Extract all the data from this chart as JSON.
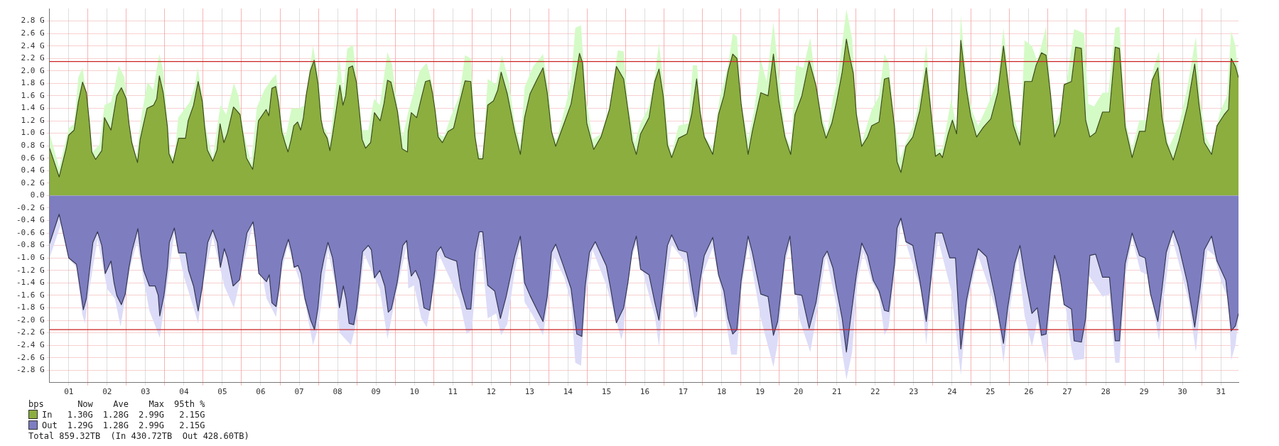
{
  "chart_data": {
    "type": "area",
    "xlim": [
      0,
      30.96
    ],
    "ylim": [
      -3,
      3
    ],
    "xticks": [
      {
        "value": 0.5,
        "label": "01"
      },
      {
        "value": 1,
        "label": null
      },
      {
        "value": 1.5,
        "label": "02"
      },
      {
        "value": 2,
        "label": null
      },
      {
        "value": 2.5,
        "label": "03"
      },
      {
        "value": 3,
        "label": null
      },
      {
        "value": 3.5,
        "label": "04"
      },
      {
        "value": 4,
        "label": null
      },
      {
        "value": 4.5,
        "label": "05"
      },
      {
        "value": 5,
        "label": null
      },
      {
        "value": 5.5,
        "label": "06"
      },
      {
        "value": 6,
        "label": null
      },
      {
        "value": 6.5,
        "label": "07"
      },
      {
        "value": 7,
        "label": null
      },
      {
        "value": 7.5,
        "label": "08"
      },
      {
        "value": 8,
        "label": null
      },
      {
        "value": 8.5,
        "label": "09"
      },
      {
        "value": 9,
        "label": null
      },
      {
        "value": 9.5,
        "label": "10"
      },
      {
        "value": 10,
        "label": null
      },
      {
        "value": 10.5,
        "label": "11"
      },
      {
        "value": 11,
        "label": null
      },
      {
        "value": 11.5,
        "label": "12"
      },
      {
        "value": 12,
        "label": null
      },
      {
        "value": 12.5,
        "label": "13"
      },
      {
        "value": 13,
        "label": null
      },
      {
        "value": 13.5,
        "label": "14"
      },
      {
        "value": 14,
        "label": null
      },
      {
        "value": 14.5,
        "label": "15"
      },
      {
        "value": 15,
        "label": null
      },
      {
        "value": 15.5,
        "label": "16"
      },
      {
        "value": 16,
        "label": null
      },
      {
        "value": 16.5,
        "label": "17"
      },
      {
        "value": 17,
        "label": null
      },
      {
        "value": 17.5,
        "label": "18"
      },
      {
        "value": 18,
        "label": null
      },
      {
        "value": 18.5,
        "label": "19"
      },
      {
        "value": 19,
        "label": null
      },
      {
        "value": 19.5,
        "label": "20"
      },
      {
        "value": 20,
        "label": null
      },
      {
        "value": 20.5,
        "label": "21"
      },
      {
        "value": 21,
        "label": null
      },
      {
        "value": 21.5,
        "label": "22"
      },
      {
        "value": 22,
        "label": null
      },
      {
        "value": 22.5,
        "label": "23"
      },
      {
        "value": 23,
        "label": null
      },
      {
        "value": 23.5,
        "label": "24"
      },
      {
        "value": 24,
        "label": null
      },
      {
        "value": 24.5,
        "label": "25"
      },
      {
        "value": 25,
        "label": null
      },
      {
        "value": 25.5,
        "label": "26"
      },
      {
        "value": 26,
        "label": null
      },
      {
        "value": 26.5,
        "label": "27"
      },
      {
        "value": 27,
        "label": null
      },
      {
        "value": 27.5,
        "label": "28"
      },
      {
        "value": 28,
        "label": null
      },
      {
        "value": 28.5,
        "label": "29"
      },
      {
        "value": 29,
        "label": null
      },
      {
        "value": 29.5,
        "label": "30"
      },
      {
        "value": 30,
        "label": null
      },
      {
        "value": 30.5,
        "label": "31"
      }
    ],
    "yticks": [
      {
        "value": -2.8,
        "label": "-2.8 G"
      },
      {
        "value": -2.6,
        "label": "-2.6 G"
      },
      {
        "value": -2.4,
        "label": "-2.4 G"
      },
      {
        "value": -2.2,
        "label": "-2.2 G"
      },
      {
        "value": -2,
        "label": "-2.0 G"
      },
      {
        "value": -1.8,
        "label": "-1.8 G"
      },
      {
        "value": -1.6,
        "label": "-1.6 G"
      },
      {
        "value": -1.4,
        "label": "-1.4 G"
      },
      {
        "value": -1.2,
        "label": "-1.2 G"
      },
      {
        "value": -1,
        "label": "-1.0 G"
      },
      {
        "value": -0.8,
        "label": "-0.8 G"
      },
      {
        "value": -0.6,
        "label": "-0.6 G"
      },
      {
        "value": -0.4,
        "label": "-0.4 G"
      },
      {
        "value": -0.2,
        "label": "-0.2 G"
      },
      {
        "value": 0,
        "label": "0.0"
      },
      {
        "value": 0.2,
        "label": "0.2 G"
      },
      {
        "value": 0.4,
        "label": "0.4 G"
      },
      {
        "value": 0.6,
        "label": "0.6 G"
      },
      {
        "value": 0.8,
        "label": "0.8 G"
      },
      {
        "value": 1,
        "label": "1.0 G"
      },
      {
        "value": 1.2,
        "label": "1.2 G"
      },
      {
        "value": 1.4,
        "label": "1.4 G"
      },
      {
        "value": 1.6,
        "label": "1.6 G"
      },
      {
        "value": 1.8,
        "label": "1.8 G"
      },
      {
        "value": 2,
        "label": "2.0 G"
      },
      {
        "value": 2.2,
        "label": "2.2 G"
      },
      {
        "value": 2.4,
        "label": "2.4 G"
      },
      {
        "value": 2.6,
        "label": "2.6 G"
      },
      {
        "value": 2.8,
        "label": "2.8 G"
      }
    ],
    "grid": true,
    "legend": "bottom left",
    "ref_lines": [
      {
        "axis": "y",
        "value": 2.15,
        "color": "#cc2222"
      },
      {
        "axis": "y",
        "value": -2.15,
        "color": "#cc2222"
      }
    ],
    "annotations": [
      "bps",
      "Now",
      "Ave",
      "Max",
      "95th %",
      "1.30G",
      "1.28G",
      "2.99G",
      "2.15G",
      "1.29G",
      "1.28G",
      "2.99G",
      "2.15G",
      "Total 859.32TB",
      "(In 430.72TB",
      "Out 428.60TB)"
    ],
    "series": [
      {
        "color": "#d4fbc6",
        "x": [
          0,
          0.25,
          0.5,
          0.64,
          0.75,
          0.86,
          1.0,
          1.12,
          1.3,
          1.43,
          1.6,
          1.68,
          1.8,
          1.95,
          2.07,
          2.25,
          2.4,
          2.55,
          2.7,
          2.86,
          2.96,
          3.14,
          3.25,
          3.35,
          3.65,
          3.78,
          3.86,
          3.98,
          4.06,
          4.25,
          4.45,
          4.6,
          4.8,
          4.92,
          5.04,
          5.25,
          5.4,
          5.6,
          5.8,
          5.9,
          6.05,
          6.15,
          6.3,
          6.5,
          6.65,
          6.7,
          6.86,
          7.0,
          7.1,
          7.2,
          7.3,
          7.45,
          7.55,
          7.65,
          7.75,
          7.9,
          8.0,
          8.14,
          8.3,
          8.45,
          8.6,
          8.8,
          8.92,
          9.06,
          9.2,
          9.34,
          9.42,
          9.64,
          9.82,
          9.97,
          10.12,
          10.27,
          10.45,
          10.67,
          10.82,
          10.97,
          11.11,
          11.28,
          11.41,
          11.63,
          11.78,
          11.96,
          12.11,
          12.26,
          12.37,
          12.59,
          12.85,
          13.0,
          13.1,
          13.21,
          13.44,
          13.58,
          13.69,
          13.84,
          13.95,
          14.14,
          14.36,
          14.58,
          14.8,
          14.95,
          15.06,
          15.24,
          15.39,
          15.61,
          15.76,
          15.87,
          15.98,
          16.12,
          16.2,
          16.38,
          16.64,
          16.75,
          16.86,
          17.01,
          17.27,
          17.45,
          17.67,
          17.79,
          17.9,
          18.01,
          18.19,
          18.34,
          18.52,
          18.67,
          18.85,
          18.96,
          19.15,
          19.3,
          19.44,
          19.63,
          19.81,
          19.96,
          20.14,
          20.25,
          20.4,
          20.49,
          20.64,
          20.75,
          20.9,
          21.01,
          21.15,
          21.41,
          21.6,
          21.74,
          21.85,
          22.0,
          22.15,
          22.3,
          22.52,
          22.7,
          22.83,
          22.96,
          23.11,
          23.25,
          23.48,
          23.62,
          23.73,
          23.88,
          24.03,
          24.18,
          24.43,
          24.69,
          24.84,
          24.99,
          25.13,
          25.28,
          25.39,
          25.58,
          25.72,
          25.95,
          26.06,
          26.17,
          26.39,
          26.61,
          26.68,
          26.94,
          27.05,
          27.2,
          27.42,
          27.57,
          27.75,
          27.86,
          28.01,
          28.19,
          28.38,
          28.56,
          28.75,
          28.89,
          29.0,
          29.15,
          29.41,
          29.63,
          29.85,
          29.96,
          30.11,
          30.26,
          30.48,
          30.66,
          30.77,
          30.88,
          30.96
        ],
        "values": [
          1.0,
          0.45,
          1.08,
          1.15,
          1.9,
          2.05,
          1.45,
          0.7,
          0.82,
          1.45,
          1.5,
          1.7,
          2.08,
          1.9,
          1.15,
          0.6,
          1.3,
          1.82,
          1.7,
          2.27,
          2.0,
          0.68,
          0.6,
          1.25,
          1.5,
          1.75,
          2.05,
          1.6,
          1.1,
          0.6,
          1.45,
          1.3,
          1.8,
          1.6,
          1.05,
          0.52,
          1.42,
          1.7,
          1.88,
          1.95,
          1.1,
          0.95,
          1.4,
          1.4,
          1.45,
          1.7,
          2.4,
          1.9,
          1.1,
          1.05,
          0.85,
          1.7,
          2.2,
          1.65,
          2.35,
          2.42,
          1.85,
          1.05,
          1.05,
          1.55,
          1.45,
          2.3,
          2.1,
          1.4,
          0.95,
          1.34,
          1.52,
          2.0,
          2.13,
          1.78,
          0.99,
          0.94,
          1.27,
          1.6,
          2.25,
          2.2,
          0.76,
          0.59,
          1.87,
          1.78,
          2.25,
          1.83,
          1.16,
          0.8,
          1.74,
          2.07,
          2.27,
          1.65,
          0.94,
          0.9,
          1.45,
          1.83,
          2.69,
          2.73,
          1.65,
          0.9,
          0.99,
          1.43,
          2.33,
          2.31,
          1.47,
          0.85,
          1.16,
          1.43,
          1.91,
          2.44,
          1.83,
          0.85,
          0.68,
          1.12,
          1.16,
          2.09,
          2.09,
          0.99,
          0.76,
          1.56,
          2.09,
          2.6,
          2.55,
          1.47,
          0.9,
          1.34,
          2.18,
          1.83,
          2.78,
          2.13,
          0.99,
          0.78,
          2.09,
          2.05,
          2.53,
          1.74,
          1.21,
          1.02,
          1.56,
          1.78,
          2.44,
          2.99,
          2.51,
          1.38,
          0.85,
          1.38,
          1.6,
          2.27,
          2.13,
          1.21,
          0.59,
          0.85,
          1.16,
          1.69,
          2.42,
          1.38,
          0.74,
          0.76,
          1.54,
          1.08,
          2.89,
          1.83,
          1.34,
          1.12,
          1.45,
          1.83,
          2.69,
          1.78,
          1.21,
          0.93,
          2.49,
          2.4,
          2.15,
          2.71,
          1.69,
          1.12,
          1.43,
          2.36,
          2.67,
          2.6,
          1.47,
          1.43,
          1.65,
          1.65,
          2.69,
          2.71,
          1.21,
          0.75,
          1.21,
          1.21,
          2.05,
          2.31,
          1.25,
          0.78,
          1.12,
          1.74,
          2.55,
          1.56,
          0.94,
          0.76,
          1.34,
          1.6,
          2.64,
          2.4,
          1.91
        ]
      },
      {
        "name": "In",
        "color": "#8bae3f",
        "x": [
          0,
          0.25,
          0.43,
          0.5,
          0.64,
          0.75,
          0.86,
          0.96,
          1.04,
          1.1,
          1.2,
          1.36,
          1.43,
          1.6,
          1.68,
          1.75,
          1.87,
          2.0,
          2.07,
          2.14,
          2.29,
          2.36,
          2.43,
          2.54,
          2.71,
          2.79,
          2.86,
          2.96,
          3.07,
          3.11,
          3.21,
          3.36,
          3.54,
          3.61,
          3.75,
          3.87,
          3.98,
          4.04,
          4.11,
          4.25,
          4.36,
          4.44,
          4.54,
          4.63,
          4.79,
          4.96,
          5.04,
          5.13,
          5.29,
          5.36,
          5.44,
          5.64,
          5.71,
          5.79,
          5.89,
          5.96,
          6.05,
          6.13,
          6.21,
          6.29,
          6.36,
          6.46,
          6.54,
          6.61,
          6.68,
          6.79,
          6.89,
          6.99,
          7.07,
          7.14,
          7.23,
          7.3,
          7.37,
          7.46,
          7.56,
          7.64,
          7.71,
          7.79,
          7.89,
          7.99,
          8.06,
          8.14,
          8.23,
          8.36,
          8.46,
          8.61,
          8.71,
          8.8,
          8.89,
          9.06,
          9.18,
          9.32,
          9.34,
          9.42,
          9.56,
          9.68,
          9.79,
          9.9,
          9.97,
          10.04,
          10.12,
          10.23,
          10.38,
          10.52,
          10.67,
          10.82,
          10.97,
          11.08,
          11.17,
          11.28,
          11.41,
          11.56,
          11.67,
          11.76,
          11.92,
          12.11,
          12.26,
          12.37,
          12.51,
          12.7,
          12.85,
          12.96,
          13.07,
          13.18,
          13.4,
          13.58,
          13.69,
          13.8,
          13.88,
          13.99,
          14.17,
          14.36,
          14.58,
          14.76,
          14.95,
          15.06,
          15.17,
          15.28,
          15.39,
          15.61,
          15.76,
          15.87,
          15.98,
          16.09,
          16.2,
          16.38,
          16.6,
          16.72,
          16.85,
          16.94,
          17.05,
          17.27,
          17.42,
          17.56,
          17.67,
          17.79,
          17.9,
          18.01,
          18.19,
          18.3,
          18.52,
          18.71,
          18.85,
          18.99,
          19.15,
          19.3,
          19.41,
          19.59,
          19.78,
          19.96,
          20.11,
          20.22,
          20.37,
          20.49,
          20.64,
          20.75,
          20.82,
          20.93,
          21.01,
          21.15,
          21.3,
          21.41,
          21.6,
          21.74,
          21.85,
          22.0,
          22.07,
          22.17,
          22.3,
          22.48,
          22.66,
          22.83,
          22.96,
          23.07,
          23.18,
          23.25,
          23.4,
          23.51,
          23.62,
          23.73,
          23.88,
          23.99,
          24.14,
          24.32,
          24.51,
          24.69,
          24.84,
          24.95,
          25.1,
          25.27,
          25.39,
          25.58,
          25.69,
          25.83,
          25.95,
          26.06,
          26.17,
          26.31,
          26.42,
          26.61,
          26.72,
          26.87,
          26.98,
          27.09,
          27.24,
          27.42,
          27.6,
          27.75,
          27.86,
          28.01,
          28.19,
          28.38,
          28.53,
          28.71,
          28.86,
          28.97,
          29.08,
          29.26,
          29.41,
          29.63,
          29.82,
          29.93,
          30.07,
          30.26,
          30.4,
          30.59,
          30.7,
          30.77,
          30.88,
          30.96
        ],
        "values": [
          0.76,
          0.3,
          0.75,
          0.97,
          1.05,
          1.5,
          1.82,
          1.65,
          1.15,
          0.7,
          0.58,
          0.72,
          1.25,
          1.05,
          1.35,
          1.6,
          1.73,
          1.55,
          1.15,
          0.85,
          0.53,
          0.9,
          1.1,
          1.4,
          1.45,
          1.55,
          1.92,
          1.65,
          1.1,
          0.67,
          0.52,
          0.92,
          0.92,
          1.2,
          1.45,
          1.83,
          1.5,
          1.1,
          0.73,
          0.55,
          0.73,
          1.15,
          0.85,
          1.0,
          1.42,
          1.3,
          0.97,
          0.6,
          0.42,
          0.75,
          1.2,
          1.38,
          1.28,
          1.72,
          1.75,
          1.5,
          1.02,
          0.85,
          0.7,
          0.9,
          1.12,
          1.18,
          1.05,
          1.25,
          1.6,
          2.0,
          2.17,
          1.8,
          1.22,
          1.02,
          0.92,
          0.72,
          0.98,
          1.35,
          1.77,
          1.45,
          1.6,
          2.05,
          2.08,
          1.82,
          1.4,
          0.9,
          0.76,
          0.85,
          1.33,
          1.2,
          1.48,
          1.85,
          1.82,
          1.35,
          0.75,
          0.7,
          1.03,
          1.33,
          1.25,
          1.56,
          1.83,
          1.85,
          1.65,
          1.36,
          0.94,
          0.85,
          1.03,
          1.08,
          1.47,
          1.84,
          1.83,
          0.94,
          0.59,
          0.59,
          1.45,
          1.52,
          1.69,
          1.98,
          1.63,
          1.03,
          0.66,
          1.25,
          1.63,
          1.87,
          2.05,
          1.65,
          1.03,
          0.79,
          1.16,
          1.47,
          1.87,
          2.28,
          2.13,
          1.16,
          0.74,
          0.94,
          1.38,
          2.07,
          1.87,
          1.38,
          0.88,
          0.66,
          0.99,
          1.25,
          1.83,
          2.03,
          1.6,
          0.81,
          0.61,
          0.92,
          0.99,
          1.3,
          1.87,
          1.34,
          0.94,
          0.66,
          1.3,
          1.6,
          2.0,
          2.27,
          2.2,
          1.47,
          0.66,
          1.03,
          1.65,
          1.6,
          2.27,
          1.52,
          0.94,
          0.66,
          1.3,
          1.6,
          2.16,
          1.76,
          1.16,
          0.92,
          1.16,
          1.49,
          1.98,
          2.51,
          2.27,
          1.96,
          1.3,
          0.79,
          0.94,
          1.12,
          1.18,
          1.87,
          1.89,
          1.12,
          0.54,
          0.37,
          0.79,
          0.94,
          1.36,
          2.05,
          1.3,
          0.63,
          0.68,
          0.61,
          0.99,
          1.21,
          0.99,
          2.49,
          1.69,
          1.27,
          0.94,
          1.1,
          1.23,
          1.65,
          2.4,
          1.85,
          1.12,
          0.81,
          1.83,
          1.83,
          2.09,
          2.29,
          2.25,
          1.65,
          0.94,
          1.16,
          1.78,
          1.83,
          2.38,
          2.36,
          1.21,
          0.94,
          1.01,
          1.34,
          1.34,
          2.38,
          2.36,
          1.1,
          0.61,
          1.03,
          1.03,
          1.85,
          2.05,
          1.25,
          0.85,
          0.57,
          0.88,
          1.43,
          2.11,
          1.47,
          0.85,
          0.66,
          1.12,
          1.3,
          1.38,
          2.2,
          2.07,
          1.89
        ]
      },
      {
        "color": "#dcdcf8",
        "x": [
          0,
          0.3,
          0.55,
          0.7,
          0.85,
          0.92,
          1.05,
          1.25,
          1.5,
          1.7,
          1.85,
          2.1,
          2.28,
          2.45,
          2.6,
          2.87,
          3.0,
          3.25,
          3.5,
          3.75,
          3.87,
          4.0,
          4.25,
          4.55,
          4.8,
          5.05,
          5.3,
          5.65,
          5.9,
          6.05,
          6.2,
          6.5,
          6.65,
          6.86,
          7.0,
          7.25,
          7.45,
          7.55,
          7.85,
          8.0,
          8.2,
          8.6,
          8.8,
          9.05,
          9.3,
          9.34,
          9.49,
          9.68,
          9.82,
          10.01,
          10.15,
          10.38,
          10.67,
          10.86,
          11.0,
          11.11,
          11.22,
          11.41,
          11.63,
          11.76,
          11.92,
          12.11,
          12.26,
          12.37,
          12.59,
          12.85,
          13.0,
          13.14,
          13.4,
          13.58,
          13.69,
          13.84,
          13.95,
          14.14,
          14.5,
          14.89,
          14.95,
          15.1,
          15.28,
          15.54,
          15.76,
          15.87,
          15.98,
          16.2,
          16.57,
          16.79,
          16.86,
          17.01,
          17.27,
          17.52,
          17.75,
          17.9,
          18.01,
          18.19,
          18.52,
          18.85,
          18.96,
          19.15,
          19.3,
          19.52,
          19.81,
          19.96,
          20.22,
          20.4,
          20.49,
          20.64,
          20.75,
          20.9,
          21.04,
          21.19,
          21.41,
          21.6,
          21.74,
          21.85,
          22.0,
          22.17,
          22.33,
          22.7,
          22.83,
          22.96,
          23.14,
          23.48,
          23.73,
          23.88,
          24.18,
          24.47,
          24.69,
          24.84,
          24.99,
          25.21,
          25.39,
          25.58,
          25.72,
          25.95,
          26.06,
          26.17,
          26.39,
          26.61,
          26.68,
          26.94,
          27.05,
          27.42,
          27.6,
          27.75,
          27.86,
          28.01,
          28.19,
          28.41,
          28.6,
          28.89,
          29.0,
          29.22,
          29.41,
          29.67,
          29.85,
          29.96,
          30.15,
          30.33,
          30.52,
          30.7,
          30.77,
          30.88,
          30.96
        ],
        "values": [
          -1.0,
          -0.45,
          -1.05,
          -1.15,
          -1.9,
          -2.05,
          -1.45,
          -0.7,
          -1.5,
          -1.65,
          -2.1,
          -1.15,
          -0.75,
          -1.35,
          -1.85,
          -2.28,
          -1.7,
          -0.6,
          -1.3,
          -1.8,
          -2.05,
          -1.4,
          -0.66,
          -1.45,
          -1.8,
          -1.1,
          -0.45,
          -1.65,
          -1.95,
          -1.2,
          -0.8,
          -1.35,
          -1.7,
          -2.4,
          -2.1,
          -0.88,
          -1.45,
          -2.2,
          -2.4,
          -2.0,
          -0.95,
          -1.5,
          -2.3,
          -1.5,
          -0.8,
          -1.49,
          -1.44,
          -1.97,
          -2.11,
          -1.49,
          -0.96,
          -1.27,
          -1.67,
          -2.22,
          -2.15,
          -1.27,
          -0.69,
          -1.97,
          -1.89,
          -2.24,
          -2.06,
          -1.22,
          -0.76,
          -1.71,
          -1.93,
          -2.24,
          -1.62,
          -0.98,
          -1.31,
          -1.71,
          -2.68,
          -2.73,
          -1.67,
          -0.87,
          -1.44,
          -2.31,
          -2.15,
          -1.09,
          -0.78,
          -1.44,
          -1.93,
          -2.42,
          -1.67,
          -0.78,
          -1.09,
          -1.97,
          -1.93,
          -1.27,
          -0.83,
          -1.62,
          -2.55,
          -2.55,
          -1.53,
          -0.8,
          -1.97,
          -2.75,
          -2.37,
          -1.09,
          -0.74,
          -1.97,
          -2.51,
          -1.97,
          -0.96,
          -1.49,
          -1.76,
          -2.51,
          -2.95,
          -2.51,
          -1.36,
          -0.91,
          -1.38,
          -1.58,
          -2.24,
          -2.11,
          -1.27,
          -0.45,
          -0.82,
          -1.53,
          -2.4,
          -1.44,
          -0.71,
          -1.53,
          -2.88,
          -1.8,
          -0.96,
          -1.49,
          -1.93,
          -2.68,
          -1.89,
          -0.96,
          -1.93,
          -2.42,
          -2.02,
          -2.7,
          -1.67,
          -1.09,
          -1.49,
          -2.46,
          -2.64,
          -2.62,
          -1.27,
          -1.62,
          -1.58,
          -2.68,
          -2.68,
          -1.31,
          -0.69,
          -1.22,
          -1.27,
          -2.33,
          -1.71,
          -0.65,
          -1.09,
          -1.71,
          -2.51,
          -1.8,
          -0.87,
          -0.96,
          -1.4,
          -1.67,
          -2.64,
          -2.4,
          -1.97
        ]
      },
      {
        "name": "Out",
        "color": "#7d7dc0",
        "x": [
          0,
          0.25,
          0.5,
          0.7,
          0.8,
          0.88,
          0.96,
          1.05,
          1.13,
          1.25,
          1.36,
          1.45,
          1.6,
          1.68,
          1.75,
          1.87,
          1.97,
          2.07,
          2.15,
          2.3,
          2.38,
          2.45,
          2.6,
          2.75,
          2.83,
          2.87,
          2.98,
          3.07,
          3.12,
          3.25,
          3.36,
          3.55,
          3.62,
          3.75,
          3.87,
          3.98,
          4.04,
          4.12,
          4.25,
          4.37,
          4.45,
          4.55,
          4.63,
          4.78,
          4.95,
          5.04,
          5.14,
          5.3,
          5.37,
          5.45,
          5.65,
          5.72,
          5.79,
          5.9,
          5.97,
          6.05,
          6.14,
          6.22,
          6.3,
          6.37,
          6.47,
          6.55,
          6.65,
          6.8,
          6.9,
          6.99,
          7.07,
          7.15,
          7.25,
          7.37,
          7.45,
          7.55,
          7.65,
          7.72,
          7.8,
          7.92,
          8.0,
          8.07,
          8.15,
          8.3,
          8.38,
          8.46,
          8.6,
          8.73,
          8.82,
          8.9,
          9.05,
          9.2,
          9.3,
          9.34,
          9.42,
          9.53,
          9.64,
          9.75,
          9.9,
          10.01,
          10.08,
          10.19,
          10.3,
          10.45,
          10.6,
          10.71,
          10.86,
          10.97,
          11.08,
          11.19,
          11.28,
          11.41,
          11.59,
          11.74,
          11.89,
          12.11,
          12.26,
          12.37,
          12.51,
          12.74,
          12.85,
          12.96,
          13.07,
          13.18,
          13.36,
          13.58,
          13.73,
          13.86,
          13.95,
          14.06,
          14.21,
          14.5,
          14.61,
          14.76,
          14.95,
          15.06,
          15.17,
          15.28,
          15.39,
          15.61,
          15.76,
          15.87,
          15.98,
          16.09,
          16.2,
          16.38,
          16.6,
          16.75,
          16.85,
          16.94,
          17.05,
          17.27,
          17.42,
          17.56,
          17.67,
          17.79,
          17.9,
          18.01,
          18.19,
          18.3,
          18.52,
          18.71,
          18.85,
          18.96,
          19.15,
          19.28,
          19.41,
          19.59,
          19.78,
          19.96,
          20.14,
          20.25,
          20.4,
          20.49,
          20.64,
          20.75,
          20.86,
          21.01,
          21.15,
          21.3,
          21.45,
          21.6,
          21.74,
          21.85,
          22.0,
          22.07,
          22.17,
          22.3,
          22.48,
          22.66,
          22.83,
          22.96,
          23.07,
          23.25,
          23.44,
          23.59,
          23.73,
          23.88,
          24.03,
          24.18,
          24.4,
          24.62,
          24.84,
          24.95,
          25.13,
          25.27,
          25.39,
          25.58,
          25.72,
          25.83,
          25.95,
          26.06,
          26.17,
          26.31,
          26.42,
          26.61,
          26.68,
          26.87,
          26.98,
          27.09,
          27.24,
          27.42,
          27.6,
          27.75,
          27.86,
          28.01,
          28.19,
          28.38,
          28.53,
          28.67,
          28.86,
          28.97,
          29.08,
          29.26,
          29.41,
          29.63,
          29.82,
          29.96,
          30.07,
          30.26,
          30.4,
          30.63,
          30.77,
          30.88,
          30.96
        ],
        "values": [
          -0.77,
          -0.3,
          -1.0,
          -1.1,
          -1.5,
          -1.83,
          -1.65,
          -1.15,
          -0.75,
          -0.58,
          -0.8,
          -1.25,
          -1.05,
          -1.4,
          -1.6,
          -1.75,
          -1.58,
          -1.15,
          -0.88,
          -0.53,
          -0.95,
          -1.2,
          -1.45,
          -1.45,
          -1.6,
          -1.93,
          -1.6,
          -1.15,
          -0.75,
          -0.52,
          -0.92,
          -0.92,
          -1.2,
          -1.45,
          -1.85,
          -1.45,
          -1.15,
          -0.75,
          -0.55,
          -0.75,
          -1.15,
          -0.85,
          -1.0,
          -1.45,
          -1.35,
          -0.97,
          -0.6,
          -0.42,
          -0.75,
          -1.25,
          -1.38,
          -1.27,
          -1.72,
          -1.78,
          -1.5,
          -1.05,
          -0.85,
          -0.7,
          -0.9,
          -1.15,
          -1.12,
          -1.25,
          -1.65,
          -2.0,
          -2.15,
          -1.8,
          -1.25,
          -1.0,
          -0.75,
          -1.0,
          -1.35,
          -1.8,
          -1.45,
          -1.65,
          -2.05,
          -2.07,
          -1.8,
          -1.4,
          -0.9,
          -0.8,
          -0.87,
          -1.32,
          -1.2,
          -1.45,
          -1.87,
          -1.82,
          -1.4,
          -0.8,
          -0.72,
          -1.0,
          -1.29,
          -1.2,
          -1.36,
          -1.8,
          -1.84,
          -1.33,
          -0.91,
          -0.82,
          -0.98,
          -1.02,
          -1.05,
          -1.49,
          -1.82,
          -1.82,
          -0.91,
          -0.58,
          -0.58,
          -1.44,
          -1.53,
          -1.97,
          -1.62,
          -0.98,
          -0.65,
          -1.4,
          -1.6,
          -1.89,
          -2.02,
          -1.62,
          -0.91,
          -0.78,
          -1.09,
          -1.49,
          -2.22,
          -2.26,
          -1.44,
          -0.91,
          -0.74,
          -1.13,
          -1.49,
          -2.04,
          -1.8,
          -1.4,
          -0.89,
          -0.65,
          -1.18,
          -1.27,
          -1.71,
          -2.0,
          -1.4,
          -0.8,
          -0.63,
          -0.87,
          -0.91,
          -1.53,
          -1.86,
          -1.36,
          -0.96,
          -0.67,
          -1.27,
          -1.53,
          -1.97,
          -2.22,
          -2.15,
          -1.36,
          -0.65,
          -0.91,
          -1.58,
          -1.62,
          -2.24,
          -2.02,
          -0.96,
          -0.65,
          -1.58,
          -1.6,
          -2.13,
          -1.71,
          -1.0,
          -0.89,
          -1.16,
          -1.49,
          -1.97,
          -2.51,
          -1.97,
          -1.27,
          -0.76,
          -0.96,
          -1.36,
          -1.53,
          -1.84,
          -1.86,
          -1.11,
          -0.52,
          -0.36,
          -0.74,
          -0.8,
          -1.36,
          -2.02,
          -1.27,
          -0.6,
          -0.6,
          -1.0,
          -1.0,
          -2.46,
          -1.67,
          -1.22,
          -0.85,
          -0.98,
          -1.62,
          -2.37,
          -1.8,
          -1.09,
          -0.8,
          -1.27,
          -1.89,
          -1.8,
          -2.24,
          -2.22,
          -1.53,
          -0.96,
          -1.27,
          -1.75,
          -1.82,
          -2.33,
          -2.35,
          -1.97,
          -0.96,
          -0.94,
          -1.31,
          -1.31,
          -2.33,
          -2.33,
          -1.09,
          -0.6,
          -0.96,
          -1.0,
          -1.58,
          -2.02,
          -1.49,
          -0.91,
          -0.56,
          -0.82,
          -1.4,
          -2.11,
          -1.49,
          -0.87,
          -0.65,
          -1.05,
          -1.36,
          -2.17,
          -2.09,
          -1.89
        ]
      }
    ]
  }
}
